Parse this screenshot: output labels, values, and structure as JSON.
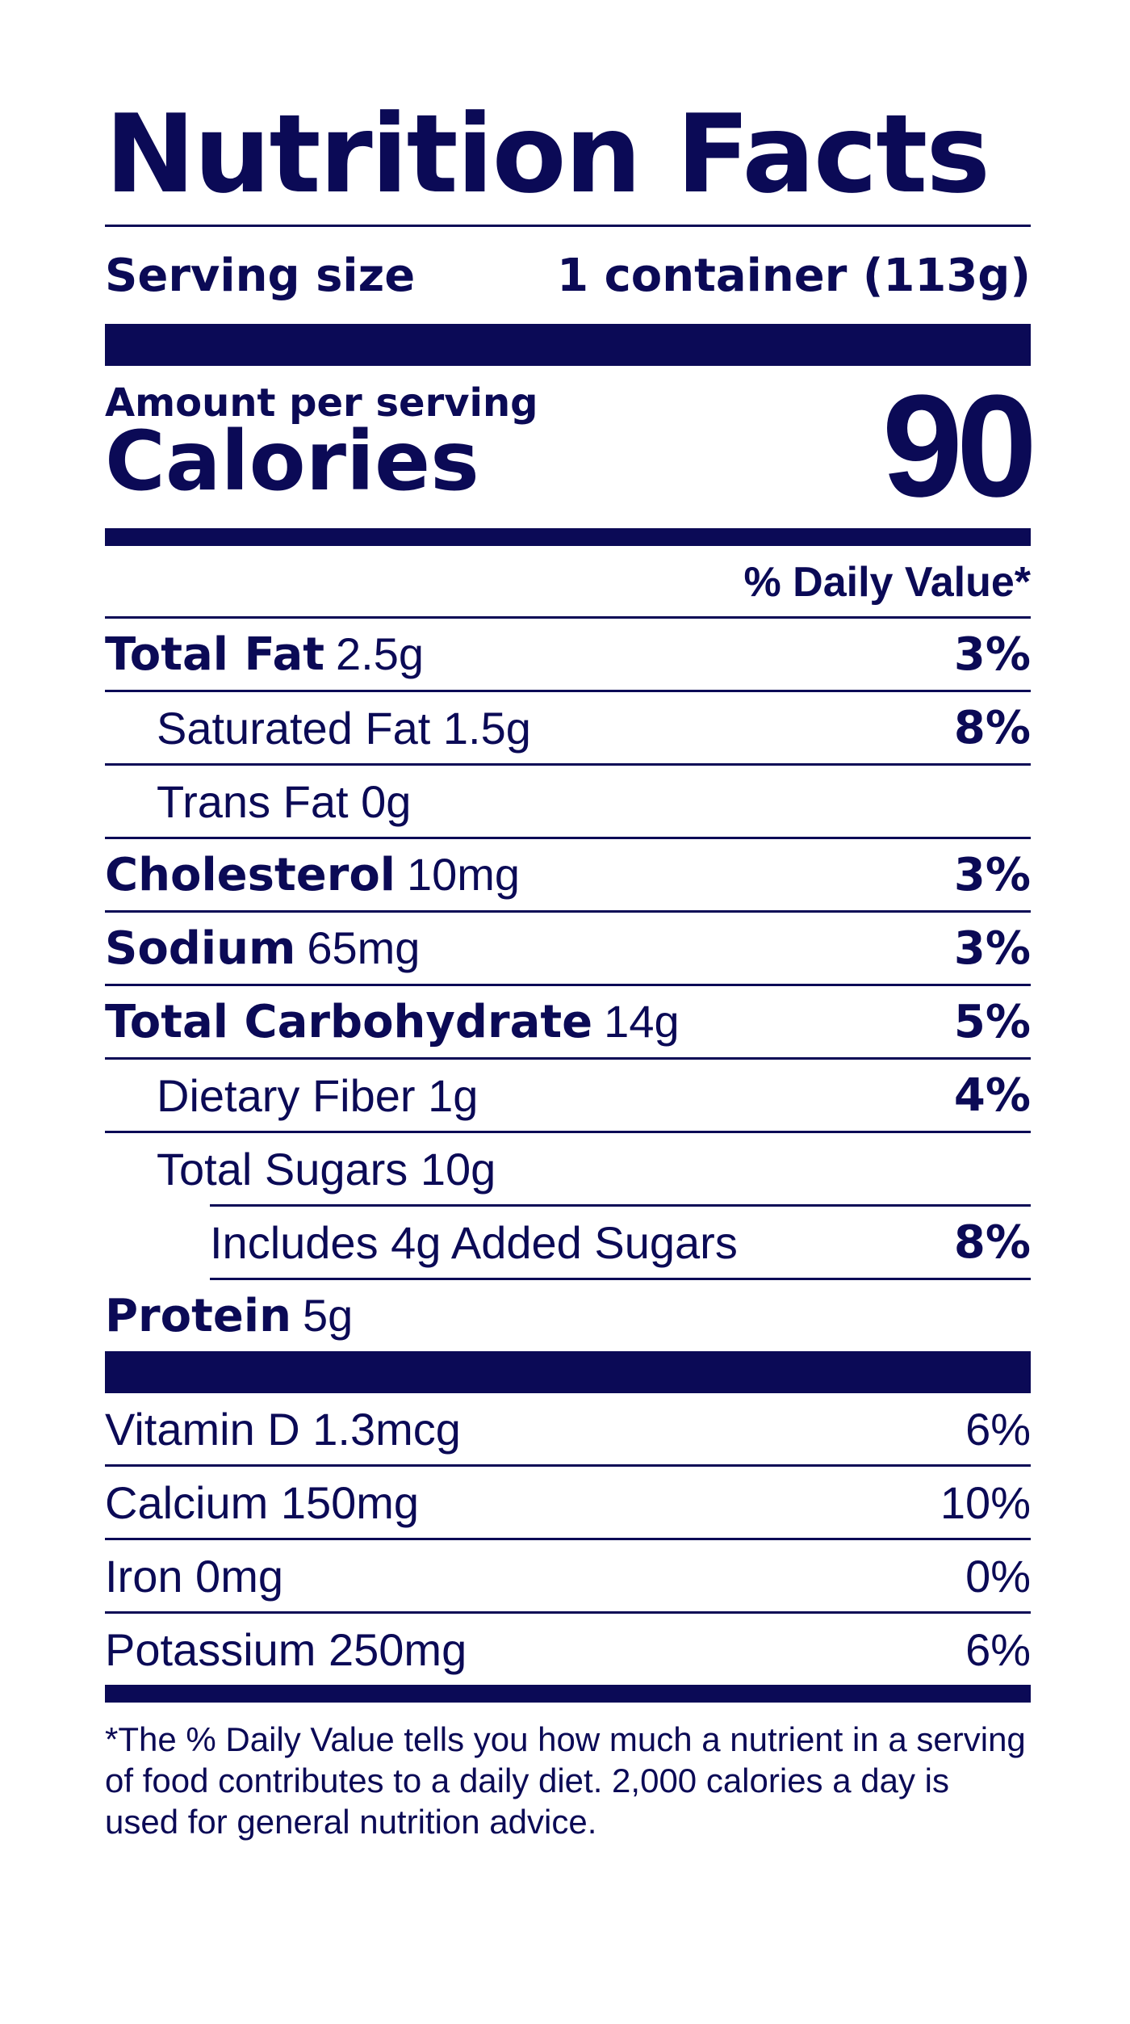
{
  "title": "Nutrition Facts",
  "serving": {
    "label": "Serving size",
    "value": "1 container (113g)"
  },
  "amount_per_serving": "Amount per serving",
  "calories": {
    "label": "Calories",
    "value": "90"
  },
  "daily_value_header": "% Daily Value*",
  "nutrients": [
    {
      "name": "Total Fat",
      "amount": "2.5g",
      "dv": "3%"
    },
    {
      "name": "Saturated Fat 1.5g",
      "dv": "8%"
    },
    {
      "name": "Trans Fat 0g",
      "dv": ""
    },
    {
      "name": "Cholesterol",
      "amount": "10mg",
      "dv": "3%"
    },
    {
      "name": "Sodium",
      "amount": "65mg",
      "dv": "3%"
    },
    {
      "name": "Total Carbohydrate",
      "amount": "14g",
      "dv": "5%"
    },
    {
      "name": "Dietary Fiber 1g",
      "dv": "4%"
    },
    {
      "name": "Total Sugars 10g",
      "dv": ""
    },
    {
      "name": "Includes 4g Added Sugars",
      "dv": "8%"
    },
    {
      "name": "Protein",
      "amount": "5g",
      "dv": ""
    }
  ],
  "vitamins": [
    {
      "name": "Vitamin D 1.3mcg",
      "dv": "6%"
    },
    {
      "name": "Calcium 150mg",
      "dv": "10%"
    },
    {
      "name": "Iron 0mg",
      "dv": "0%"
    },
    {
      "name": "Potassium 250mg",
      "dv": "6%"
    }
  ],
  "footnote": "*The % Daily Value tells you how much a nutrient in a serving of food contributes to a daily diet. 2,000 calories a day is used for general nutrition advice.",
  "colors": {
    "ink": "#0b0a56",
    "background": "#ffffff"
  }
}
